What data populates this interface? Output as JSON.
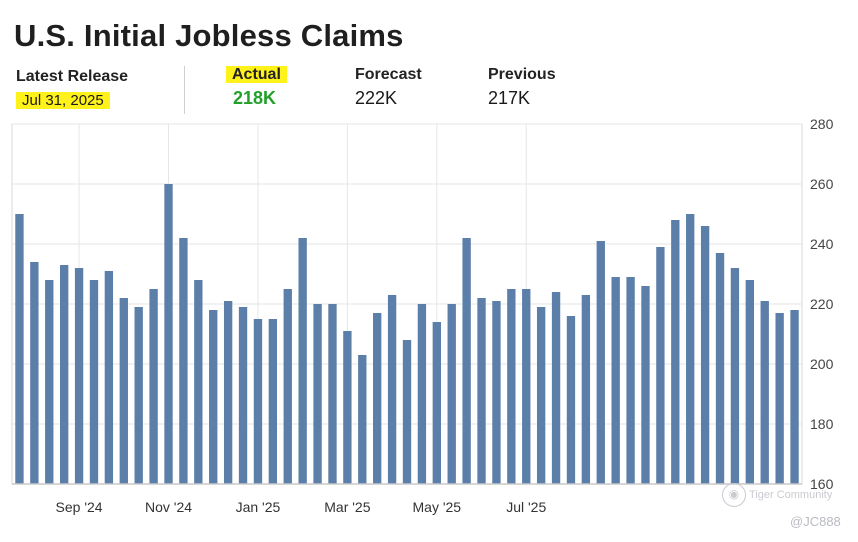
{
  "header": {
    "title": "U.S. Initial Jobless Claims",
    "latest_release_label": "Latest Release",
    "latest_release_value": "Jul 31, 2025",
    "actual_label": "Actual",
    "actual_value": "218K",
    "forecast_label": "Forecast",
    "forecast_value": "222K",
    "previous_label": "Previous",
    "previous_value": "217K",
    "highlight_color": "#fff21a",
    "actual_color": "#22a12a"
  },
  "watermark": {
    "logo_text": "Tiger Community",
    "handle": "@JC888"
  },
  "chart_data": {
    "type": "bar",
    "bar_color": "#5b7fa8",
    "ylim": [
      160,
      280
    ],
    "y_ticks": [
      160,
      180,
      200,
      220,
      240,
      260,
      280
    ],
    "x_ticks": [
      "Sep '24",
      "Nov '24",
      "Jan '25",
      "Mar '25",
      "May '25",
      "Jul '25"
    ],
    "x_tick_bar_index": [
      4,
      10,
      16,
      22,
      28,
      34
    ],
    "grid": true,
    "y_axis_position": "right",
    "values": [
      250,
      234,
      228,
      233,
      232,
      228,
      231,
      222,
      219,
      225,
      260,
      242,
      228,
      218,
      221,
      219,
      215,
      215,
      225,
      242,
      220,
      220,
      211,
      203,
      217,
      223,
      208,
      220,
      214,
      220,
      242,
      222,
      221,
      225,
      225,
      219,
      224,
      216,
      223,
      241,
      229,
      229,
      226,
      239,
      248,
      250,
      246,
      237,
      232,
      228,
      221,
      217,
      218
    ]
  }
}
